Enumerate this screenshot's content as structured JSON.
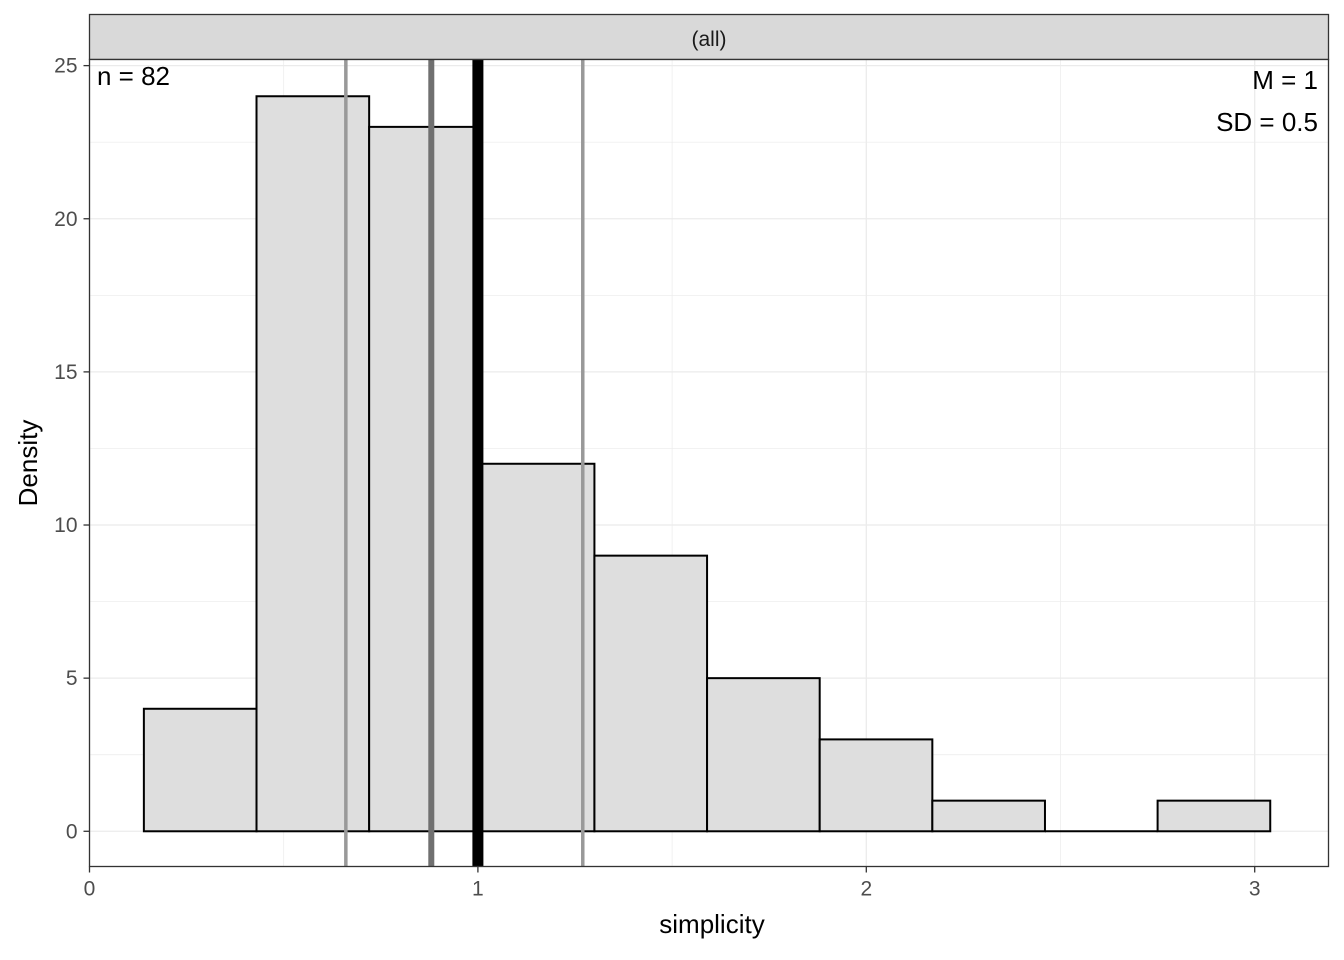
{
  "chart_data": {
    "type": "bar",
    "facet_label": "(all)",
    "xlabel": "simplicity",
    "ylabel": "Density",
    "xlim": [
      0,
      3.19
    ],
    "ylim": [
      -1.15,
      25.2
    ],
    "x_ticks": [
      0,
      1,
      2,
      3
    ],
    "y_ticks": [
      0,
      5,
      10,
      15,
      20,
      25
    ],
    "bins": [
      {
        "x0": 0.14,
        "x1": 0.43,
        "value": 4
      },
      {
        "x0": 0.43,
        "x1": 0.72,
        "value": 24
      },
      {
        "x0": 0.72,
        "x1": 1.01,
        "value": 23
      },
      {
        "x0": 1.01,
        "x1": 1.3,
        "value": 12
      },
      {
        "x0": 1.3,
        "x1": 1.59,
        "value": 9
      },
      {
        "x0": 1.59,
        "x1": 1.88,
        "value": 5
      },
      {
        "x0": 1.88,
        "x1": 2.17,
        "value": 3
      },
      {
        "x0": 2.17,
        "x1": 2.46,
        "value": 1
      },
      {
        "x0": 2.46,
        "x1": 2.75,
        "value": 0
      },
      {
        "x0": 2.75,
        "x1": 3.04,
        "value": 1
      }
    ],
    "vlines": [
      {
        "name": "q1-line",
        "x": 0.66,
        "color": "#999999"
      },
      {
        "name": "median-line",
        "x": 0.88,
        "color": "#707070"
      },
      {
        "name": "mean-line",
        "x": 1.0,
        "color": "#000000"
      },
      {
        "name": "q3-line",
        "x": 1.27,
        "color": "#999999"
      }
    ],
    "annotations": {
      "n": "n = 82",
      "mean": "M = 1",
      "sd": "SD = 0.5"
    },
    "bar_fill": "#dedede",
    "bar_stroke": "#000000",
    "grid": true
  }
}
